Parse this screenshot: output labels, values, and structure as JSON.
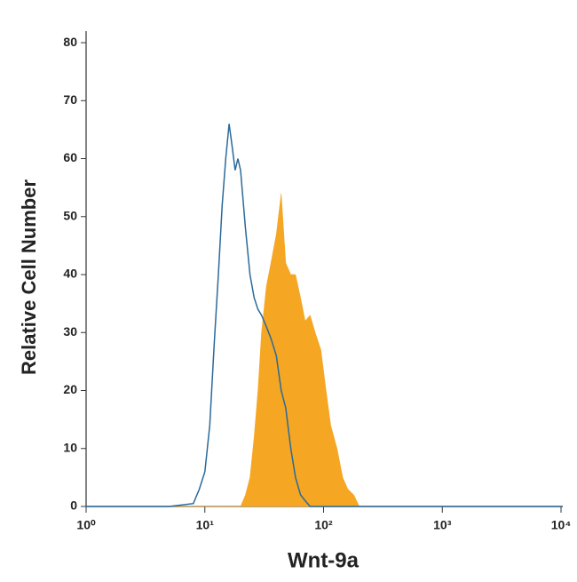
{
  "chart_data": {
    "type": "histogram-overlay",
    "x_label": "Wnt-9a",
    "y_label": "Relative Cell Number",
    "log_x": true,
    "xlim": [
      1,
      10000
    ],
    "xticks": [
      {
        "value": 1,
        "label": "10⁰"
      },
      {
        "value": 10,
        "label": "10¹"
      },
      {
        "value": 100,
        "label": "10²"
      },
      {
        "value": 1000,
        "label": "10³"
      },
      {
        "value": 10000,
        "label": "10⁴"
      }
    ],
    "ylim": [
      0,
      82
    ],
    "yticks": [
      0,
      10,
      20,
      30,
      40,
      50,
      60,
      70,
      80
    ],
    "x": [
      1,
      5,
      8,
      9,
      10,
      11,
      12,
      13,
      14,
      15,
      16,
      17,
      18,
      19,
      20,
      22,
      24,
      26,
      28,
      30,
      33,
      36,
      40,
      44,
      48,
      53,
      58,
      64,
      70,
      77,
      85,
      95,
      105,
      115,
      130,
      145,
      160,
      180,
      200,
      220,
      10000
    ],
    "series": [
      {
        "color": "#f5a623",
        "filled": true,
        "values": [
          0,
          0,
          0,
          0,
          0,
          0,
          0,
          0,
          0,
          0,
          0,
          0,
          0,
          0,
          0,
          2,
          5,
          12,
          20,
          30,
          38,
          42,
          47,
          54,
          42,
          40,
          40,
          36,
          32,
          33,
          30,
          27,
          20,
          14,
          10,
          5,
          3,
          2,
          0,
          0,
          0
        ]
      },
      {
        "color": "#2a6a9a",
        "filled": false,
        "values": [
          0,
          0,
          0.5,
          3,
          6,
          14,
          28,
          40,
          52,
          60,
          66,
          62,
          58,
          60,
          58,
          48,
          40,
          36,
          34,
          33,
          31,
          29,
          26,
          20,
          17,
          10,
          5,
          2,
          1,
          0,
          0,
          0,
          0,
          0,
          0,
          0,
          0,
          0,
          0,
          0,
          0
        ]
      }
    ]
  }
}
